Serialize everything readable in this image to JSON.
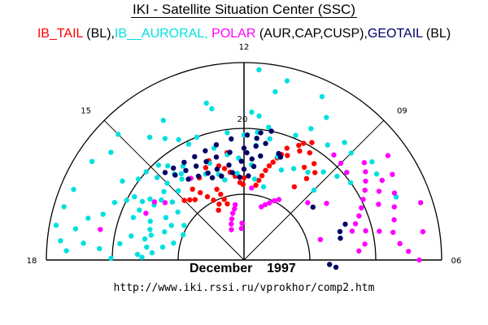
{
  "title": "IKI - Satellite Situation Center (SSC)",
  "legend": [
    {
      "label": "IB_TAIL",
      "color": "#ff0000"
    },
    {
      "label": " (BL),",
      "color": "#000000"
    },
    {
      "label": "IB__AURORAL, ",
      "color": "#00e0e0"
    },
    {
      "label": "POLAR",
      "color": "#ff00ff"
    },
    {
      "label": " (AUR,CAP,CUSP),",
      "color": "#000000"
    },
    {
      "label": "GEOTAIL",
      "color": "#000066"
    },
    {
      "label": " (BL)",
      "color": "#000000"
    }
  ],
  "date_label": "December    1997",
  "url_text": "http://www.iki.rssi.ru/vprokhor/comp2.htm",
  "chart_data": {
    "type": "scatter",
    "projection": "polar-half (MLT dial, 06-12-18 upper half)",
    "title": "IKI - Satellite Situation Center (SSC)",
    "subtitle": "December 1997",
    "angular_axis": {
      "quantity": "MLT (hours)",
      "tick_labels": [
        "18",
        "15",
        "12",
        "09",
        "06"
      ],
      "tick_values": [
        18,
        15,
        12,
        9,
        6
      ]
    },
    "radial_axis": {
      "rings": [
        10,
        20,
        30
      ],
      "labeled_ring": {
        "value": 20,
        "label": "20"
      },
      "range": [
        0,
        30
      ]
    },
    "legend_placement": "top",
    "series": [
      {
        "name": "IB_TAIL (BL)",
        "color": "#ff0000",
        "points": [
          [
            11.4,
            11.5
          ],
          [
            11.3,
            12.3
          ],
          [
            11.2,
            13.1
          ],
          [
            11.1,
            14.0
          ],
          [
            11.0,
            14.8
          ],
          [
            10.9,
            15.5
          ],
          [
            10.8,
            16.3
          ],
          [
            10.7,
            17.0
          ],
          [
            12.2,
            11.8
          ],
          [
            12.4,
            12.8
          ],
          [
            12.6,
            13.5
          ],
          [
            12.8,
            14.2
          ],
          [
            13.0,
            14.8
          ],
          [
            13.6,
            9.3
          ],
          [
            13.8,
            10.2
          ],
          [
            14.0,
            11.1
          ],
          [
            14.2,
            12.2
          ],
          [
            14.4,
            13.3
          ],
          [
            13.9,
            14.2
          ],
          [
            13.5,
            15.2
          ],
          [
            13.3,
            16.0
          ],
          [
            14.6,
            11.8
          ],
          [
            14.8,
            12.3
          ],
          [
            15.0,
            12.8
          ],
          [
            13.1,
            8.9
          ],
          [
            13.2,
            9.7
          ],
          [
            13.3,
            10.6
          ],
          [
            13.4,
            11.5
          ],
          [
            12.6,
            16.5
          ],
          [
            10.6,
            18.2
          ],
          [
            10.3,
            19.3
          ],
          [
            10.0,
            20.6
          ],
          [
            10.2,
            19.9
          ],
          [
            10.2,
            18.6
          ],
          [
            9.9,
            19.1
          ],
          [
            10.5,
            17.2
          ],
          [
            9.6,
            18.1
          ],
          [
            9.4,
            17.1
          ],
          [
            9.8,
            16.8
          ],
          [
            9.5,
            15.6
          ],
          [
            9.7,
            13.5
          ],
          [
            12.05,
            11.5
          ],
          [
            12.0,
            12.5
          ],
          [
            13.8,
            8.5
          ]
        ]
      },
      {
        "name": "IB__AURORAL",
        "color": "#00e0e0",
        "points": [
          [
            11.7,
            29.0
          ],
          [
            11.1,
            28.0
          ],
          [
            11.3,
            26.0
          ],
          [
            10.3,
            27.5
          ],
          [
            10.0,
            25.0
          ],
          [
            12.8,
            23.5
          ],
          [
            12.9,
            24.5
          ],
          [
            11.8,
            22.5
          ],
          [
            11.6,
            22.0
          ],
          [
            13.4,
            20.0
          ],
          [
            13.7,
            19.5
          ],
          [
            12.5,
            19.5
          ],
          [
            12.0,
            19.0
          ],
          [
            11.6,
            19.5
          ],
          [
            11.3,
            20.5
          ],
          [
            11.6,
            17.5
          ],
          [
            11.2,
            18.8
          ],
          [
            10.5,
            20.5
          ],
          [
            10.2,
            22.4
          ],
          [
            9.6,
            21.6
          ],
          [
            9.3,
            23.5
          ],
          [
            9.0,
            23.0
          ],
          [
            8.5,
            24.5
          ],
          [
            8.2,
            24.0
          ],
          [
            7.5,
            25.0
          ],
          [
            8.8,
            19.0
          ],
          [
            9.2,
            18.0
          ],
          [
            9.6,
            16.5
          ],
          [
            10.5,
            14.8
          ],
          [
            10.8,
            16.5
          ],
          [
            11.7,
            14.5
          ],
          [
            11.5,
            12.4
          ],
          [
            12.3,
            13.2
          ],
          [
            12.9,
            12.5
          ],
          [
            13.1,
            13.6
          ],
          [
            14.2,
            17.0
          ],
          [
            14.4,
            16.2
          ],
          [
            14.6,
            16.8
          ],
          [
            15.0,
            16.5
          ],
          [
            15.3,
            16.0
          ],
          [
            15.6,
            15.5
          ],
          [
            15.8,
            17.0
          ],
          [
            16.0,
            17.8
          ],
          [
            16.3,
            17.6
          ],
          [
            16.5,
            15.4
          ],
          [
            16.8,
            15.0
          ],
          [
            17.0,
            14.6
          ],
          [
            17.2,
            15.4
          ],
          [
            17.5,
            14.9
          ],
          [
            17.8,
            16.2
          ],
          [
            16.2,
            20.0
          ],
          [
            16.4,
            21.5
          ],
          [
            16.8,
            22.5
          ],
          [
            17.0,
            24.5
          ],
          [
            17.3,
            26.0
          ],
          [
            17.6,
            24.5
          ],
          [
            15.5,
            20.2
          ],
          [
            15.8,
            22.0
          ],
          [
            16.0,
            19.2
          ],
          [
            15.2,
            20.0
          ],
          [
            14.8,
            19.4
          ],
          [
            14.6,
            18.4
          ],
          [
            16.1,
            13.5
          ],
          [
            16.3,
            12.2
          ],
          [
            16.7,
            12.8
          ],
          [
            17.1,
            11.0
          ],
          [
            17.4,
            12.5
          ],
          [
            17.7,
            14.0
          ],
          [
            17.9,
            15.5
          ],
          [
            17.95,
            20.2
          ],
          [
            17.8,
            27.0
          ],
          [
            17.6,
            28.0
          ],
          [
            17.3,
            29.0
          ],
          [
            16.9,
            28.5
          ],
          [
            16.5,
            28.0
          ],
          [
            15.8,
            27.5
          ],
          [
            15.4,
            26.0
          ],
          [
            15.0,
            27.0
          ],
          [
            14.5,
            23.5
          ],
          [
            14.2,
            22.0
          ],
          [
            14.0,
            24.5
          ],
          [
            13.9,
            20.8
          ],
          [
            13.0,
            17.6
          ],
          [
            12.6,
            16.2
          ],
          [
            13.6,
            14.3
          ],
          [
            13.3,
            15.6
          ],
          [
            14.5,
            15.5
          ],
          [
            14.9,
            14.5
          ],
          [
            15.4,
            14.0
          ],
          [
            15.6,
            12.4
          ],
          [
            16.0,
            10.5
          ],
          [
            16.5,
            10.0
          ],
          [
            11.0,
            11.5
          ],
          [
            10.1,
            15.8
          ],
          [
            9.0,
            15.0
          ],
          [
            8.4,
            20.0
          ],
          [
            12.2,
            15.5
          ],
          [
            15.1,
            18.2
          ],
          [
            15.9,
            16.0
          ],
          [
            16.6,
            18.0
          ],
          [
            17.2,
            17.5
          ],
          [
            17.5,
            19.0
          ],
          [
            17.7,
            22.0
          ]
        ]
      },
      {
        "name": "POLAR (AUR,CAP,CUSP)",
        "color": "#ff00ff",
        "points": [
          [
            13.5,
            5.0
          ],
          [
            13.3,
            5.8
          ],
          [
            13.1,
            6.5
          ],
          [
            12.9,
            7.3
          ],
          [
            12.7,
            7.9
          ],
          [
            12.6,
            8.5
          ],
          [
            12.3,
            4.8
          ],
          [
            12.2,
            5.6
          ],
          [
            10.8,
            8.5
          ],
          [
            10.6,
            9.0
          ],
          [
            10.4,
            9.5
          ],
          [
            10.2,
            10.1
          ],
          [
            10.0,
            10.6
          ],
          [
            7.0,
            17.0
          ],
          [
            7.2,
            17.8
          ],
          [
            7.4,
            18.7
          ],
          [
            7.6,
            19.5
          ],
          [
            7.8,
            20.3
          ],
          [
            8.0,
            21.2
          ],
          [
            8.2,
            22.0
          ],
          [
            8.4,
            22.8
          ],
          [
            8.6,
            23.5
          ],
          [
            9.3,
            21.0
          ],
          [
            9.0,
            20.8
          ],
          [
            8.7,
            20.5
          ],
          [
            8.4,
            27.0
          ],
          [
            8.0,
            26.0
          ],
          [
            7.6,
            25.0
          ],
          [
            7.3,
            24.2
          ],
          [
            7.0,
            23.6
          ],
          [
            6.7,
            23.0
          ],
          [
            6.4,
            23.8
          ],
          [
            6.2,
            25.0
          ],
          [
            6.0,
            26.6
          ],
          [
            6.6,
            27.5
          ],
          [
            7.2,
            28.2
          ],
          [
            8.3,
            15.2
          ],
          [
            7.0,
            12.0
          ],
          [
            6.3,
            17.5
          ],
          [
            6.5,
            18.5
          ],
          [
            6.9,
            19.0
          ],
          [
            7.5,
            22.1
          ],
          [
            8.8,
            13.0
          ],
          [
            11.6,
            11.0
          ],
          [
            17.2,
            22.3
          ],
          [
            16.3,
            16.5
          ],
          [
            15.8,
            16.2
          ],
          [
            15.6,
            14.8
          ],
          [
            14.2,
            14.8
          ],
          [
            8.0,
            24.2
          ],
          [
            7.8,
            23.0
          ],
          [
            6.8,
            21.0
          ]
        ]
      },
      {
        "name": "GEOTAIL (BL)",
        "color": "#000066",
        "points": [
          [
            11.2,
            20.0
          ],
          [
            11.5,
            19.5
          ],
          [
            11.9,
            19.0
          ],
          [
            12.4,
            18.5
          ],
          [
            12.9,
            18.0
          ],
          [
            13.3,
            17.6
          ],
          [
            13.7,
            17.4
          ],
          [
            14.1,
            17.4
          ],
          [
            14.5,
            17.6
          ],
          [
            14.8,
            17.9
          ],
          [
            11.3,
            18.0
          ],
          [
            11.6,
            17.4
          ],
          [
            12.0,
            17.0
          ],
          [
            12.5,
            16.5
          ],
          [
            13.0,
            16.2
          ],
          [
            13.4,
            16.0
          ],
          [
            13.8,
            16.0
          ],
          [
            14.2,
            16.2
          ],
          [
            14.6,
            16.6
          ],
          [
            11.4,
            16.0
          ],
          [
            11.7,
            15.4
          ],
          [
            12.1,
            15.0
          ],
          [
            12.6,
            14.6
          ],
          [
            13.1,
            14.4
          ],
          [
            13.5,
            14.3
          ],
          [
            13.9,
            14.5
          ],
          [
            14.3,
            14.9
          ],
          [
            11.6,
            14.3
          ],
          [
            12.0,
            13.8
          ],
          [
            12.5,
            13.4
          ],
          [
            13.0,
            13.2
          ],
          [
            13.4,
            13.4
          ],
          [
            11.8,
            12.8
          ],
          [
            12.2,
            12.6
          ],
          [
            11.9,
            16.3
          ],
          [
            11.6,
            18.6
          ],
          [
            10.8,
            17.0
          ],
          [
            10.7,
            16.6
          ],
          [
            8.5,
            13.2
          ],
          [
            7.3,
            16.3
          ],
          [
            7.1,
            15.2
          ],
          [
            6.85,
            15.0
          ],
          [
            5.8,
            13.0
          ],
          [
            5.7,
            14.0
          ]
        ]
      }
    ]
  }
}
